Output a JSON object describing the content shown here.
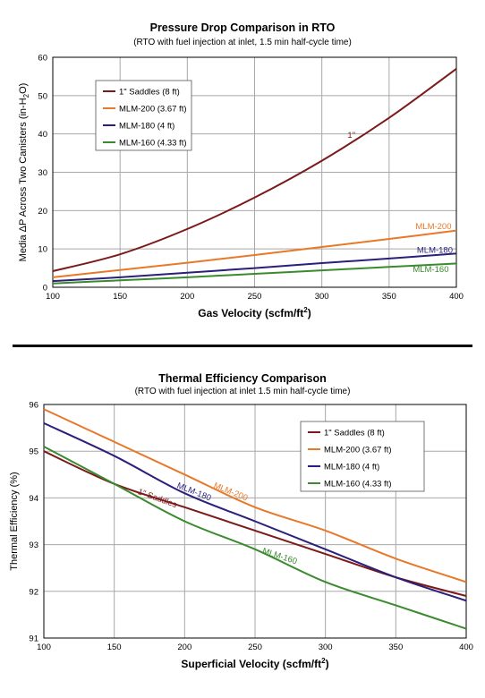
{
  "chart_data": [
    {
      "type": "line",
      "title": "Pressure Drop Comparison in RTO",
      "subtitle": "(RTO with fuel injection at inlet, 1.5 min half-cycle time)",
      "xlabel_main": "Gas Velocity (scfm/ft",
      "xlabel_sup": "2",
      "xlabel_end": ")",
      "ylabel_main": "Media ΔP Across Two Canisters (in-H",
      "ylabel_sub": "2",
      "ylabel_end": "O)",
      "xlim": [
        100,
        400
      ],
      "ylim": [
        0,
        60
      ],
      "xticks": [
        100,
        150,
        200,
        250,
        300,
        350,
        400
      ],
      "yticks": [
        0,
        10,
        20,
        30,
        40,
        50,
        60
      ],
      "grid": true,
      "legend_position": "top-left",
      "series": [
        {
          "name": "1\" Saddles (8 ft)",
          "color": "#7b1a1a",
          "x": [
            100,
            150,
            200,
            250,
            300,
            350,
            400
          ],
          "y": [
            4.2,
            8.6,
            15.2,
            23.4,
            33.0,
            44.2,
            57.0
          ]
        },
        {
          "name": "MLM-200 (3.67 ft)",
          "color": "#e8782a",
          "x": [
            100,
            150,
            200,
            250,
            300,
            350,
            400
          ],
          "y": [
            2.6,
            4.5,
            6.4,
            8.4,
            10.5,
            12.6,
            14.8
          ]
        },
        {
          "name": "MLM-180 (4 ft)",
          "color": "#2a1f7a",
          "x": [
            100,
            150,
            200,
            250,
            300,
            350,
            400
          ],
          "y": [
            1.6,
            2.6,
            3.8,
            5.0,
            6.3,
            7.5,
            8.8
          ]
        },
        {
          "name": "MLM-160 (4.33 ft)",
          "color": "#3a8a2e",
          "x": [
            100,
            150,
            200,
            250,
            300,
            350,
            400
          ],
          "y": [
            1.0,
            1.8,
            2.6,
            3.5,
            4.4,
            5.3,
            6.2
          ]
        }
      ],
      "annotations": [
        {
          "text": "1\"",
          "x": 322,
          "y": 39,
          "color": "#7b1a1a"
        },
        {
          "text": "MLM-200",
          "x": 383,
          "y": 15.2,
          "color": "#e8782a"
        },
        {
          "text": "MLM-180",
          "x": 384,
          "y": 9.0,
          "color": "#2a1f7a"
        },
        {
          "text": "MLM-160",
          "x": 381,
          "y": 4.0,
          "color": "#3a8a2e"
        }
      ]
    },
    {
      "type": "line",
      "title": "Thermal Efficiency Comparison",
      "subtitle": "(RTO with fuel injection at inlet 1.5 min half-cycle time)",
      "xlabel_main": "Superficial Velocity (scfm/ft",
      "xlabel_sup": "2",
      "xlabel_end": ")",
      "ylabel_main": "Thermal Efficiency (%)",
      "xlim": [
        100,
        400
      ],
      "ylim": [
        91,
        96
      ],
      "xticks": [
        100,
        150,
        200,
        250,
        300,
        350,
        400
      ],
      "yticks": [
        91,
        92,
        93,
        94,
        95,
        96
      ],
      "grid": true,
      "legend_position": "top-right",
      "series": [
        {
          "name": "1\" Saddles (8 ft)",
          "color": "#7b1a1a",
          "x": [
            100,
            150,
            200,
            250,
            300,
            350,
            400
          ],
          "y": [
            95.0,
            94.3,
            93.8,
            93.3,
            92.8,
            92.3,
            91.9
          ]
        },
        {
          "name": "MLM-200 (3.67 ft)",
          "color": "#e8782a",
          "x": [
            100,
            150,
            200,
            250,
            300,
            350,
            400
          ],
          "y": [
            95.9,
            95.2,
            94.5,
            93.8,
            93.3,
            92.7,
            92.2
          ]
        },
        {
          "name": "MLM-180 (4 ft)",
          "color": "#2a1f7a",
          "x": [
            100,
            150,
            200,
            250,
            300,
            350,
            400
          ],
          "y": [
            95.6,
            94.9,
            94.1,
            93.5,
            92.9,
            92.3,
            91.8
          ]
        },
        {
          "name": "MLM-160 (4.33 ft)",
          "color": "#3a8a2e",
          "x": [
            100,
            150,
            200,
            250,
            300,
            350,
            400
          ],
          "y": [
            95.1,
            94.3,
            93.5,
            92.9,
            92.2,
            91.7,
            91.2
          ]
        }
      ],
      "annotations": [
        {
          "text": "MLM-200",
          "x": 232,
          "y": 94.08,
          "color": "#e8782a",
          "angle": 22
        },
        {
          "text": "MLM-180",
          "x": 206,
          "y": 94.08,
          "color": "#2a1f7a",
          "angle": 22
        },
        {
          "text": "1\" Saddles",
          "x": 180,
          "y": 93.94,
          "color": "#7b1a1a",
          "angle": 20
        },
        {
          "text": "MLM-160",
          "x": 267,
          "y": 92.7,
          "color": "#3a8a2e",
          "angle": 18
        }
      ]
    }
  ]
}
